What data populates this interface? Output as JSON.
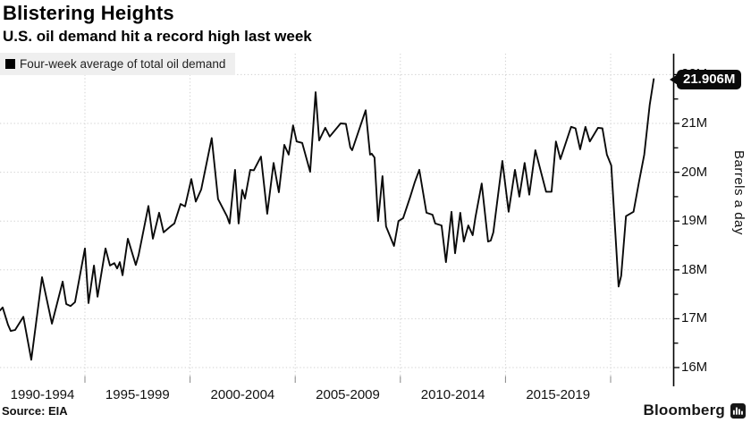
{
  "header": {
    "title": "Blistering Heights",
    "subtitle": "U.S. oil demand hit a record high last week"
  },
  "legend": {
    "label": "Four-week average of total oil demand"
  },
  "footer": {
    "source": "Source: EIA",
    "brand": "Bloomberg"
  },
  "colors": {
    "line": "#0a0a0a",
    "grid": "#d0d0d0",
    "axis": "#000000",
    "tick": "#111111",
    "bottom_tick": "#888888",
    "badge_bg": "#000000",
    "badge_text": "#ffffff",
    "legend_bg": "#efefef"
  },
  "chart_data": {
    "type": "line",
    "title": "Blistering Heights",
    "subtitle": "U.S. oil demand hit a record high last week",
    "series_name": "Four-week average of total oil demand",
    "ylabel": "Barrels a day",
    "unit": "million barrels a day",
    "grid": "dotted",
    "legend_position": "top-left",
    "ylim": [
      15.7,
      22.45
    ],
    "y_major_ticks": [
      16,
      17,
      18,
      19,
      20,
      21,
      22
    ],
    "y_tick_labels": [
      "16M",
      "17M",
      "18M",
      "19M",
      "20M",
      "21M",
      "22M"
    ],
    "y_minor_tick_step": 0.5,
    "xlim": [
      1990.95,
      2022.1
    ],
    "x_boundary_years": [
      1990,
      1995,
      2000,
      2005,
      2010,
      2015,
      2020
    ],
    "x_bin_labels": [
      "1990-1994",
      "1995-1999",
      "2000-2004",
      "2005-2009",
      "2010-2014",
      "2015-2019"
    ],
    "last_value_label": "21.906M",
    "last_value": 21.906,
    "points": [
      [
        1990.96,
        17.17
      ],
      [
        1991.09,
        17.23
      ],
      [
        1991.34,
        16.88
      ],
      [
        1991.47,
        16.75
      ],
      [
        1991.68,
        16.77
      ],
      [
        1992.07,
        17.04
      ],
      [
        1992.45,
        16.16
      ],
      [
        1992.96,
        17.85
      ],
      [
        1993.43,
        16.9
      ],
      [
        1993.94,
        17.76
      ],
      [
        1994.11,
        17.3
      ],
      [
        1994.32,
        17.26
      ],
      [
        1994.53,
        17.34
      ],
      [
        1995.0,
        18.44
      ],
      [
        1995.17,
        17.32
      ],
      [
        1995.43,
        18.09
      ],
      [
        1995.6,
        17.45
      ],
      [
        1995.98,
        18.44
      ],
      [
        1996.19,
        18.09
      ],
      [
        1996.4,
        18.14
      ],
      [
        1996.53,
        18.03
      ],
      [
        1996.66,
        18.16
      ],
      [
        1996.79,
        17.89
      ],
      [
        1997.04,
        18.64
      ],
      [
        1997.42,
        18.1
      ],
      [
        1997.55,
        18.3
      ],
      [
        1998.02,
        19.31
      ],
      [
        1998.23,
        18.64
      ],
      [
        1998.53,
        19.17
      ],
      [
        1998.74,
        18.77
      ],
      [
        1999.04,
        18.88
      ],
      [
        1999.25,
        18.95
      ],
      [
        1999.55,
        19.35
      ],
      [
        1999.76,
        19.3
      ],
      [
        2000.06,
        19.86
      ],
      [
        2000.27,
        19.4
      ],
      [
        2000.53,
        19.65
      ],
      [
        2001.03,
        20.7
      ],
      [
        2001.33,
        19.45
      ],
      [
        2001.75,
        19.1
      ],
      [
        2001.88,
        18.95
      ],
      [
        2002.14,
        20.05
      ],
      [
        2002.31,
        18.95
      ],
      [
        2002.48,
        19.64
      ],
      [
        2002.61,
        19.46
      ],
      [
        2002.86,
        20.05
      ],
      [
        2003.03,
        20.04
      ],
      [
        2003.37,
        20.32
      ],
      [
        2003.67,
        19.15
      ],
      [
        2003.97,
        20.19
      ],
      [
        2004.22,
        19.59
      ],
      [
        2004.48,
        20.56
      ],
      [
        2004.69,
        20.36
      ],
      [
        2004.9,
        20.96
      ],
      [
        2005.07,
        20.63
      ],
      [
        2005.33,
        20.6
      ],
      [
        2005.71,
        20.01
      ],
      [
        2005.97,
        21.64
      ],
      [
        2006.14,
        20.65
      ],
      [
        2006.43,
        20.91
      ],
      [
        2006.64,
        20.73
      ],
      [
        2007.16,
        21.0
      ],
      [
        2007.41,
        20.99
      ],
      [
        2007.62,
        20.51
      ],
      [
        2007.71,
        20.45
      ],
      [
        2008.35,
        21.27
      ],
      [
        2008.56,
        20.36
      ],
      [
        2008.64,
        20.38
      ],
      [
        2008.77,
        20.3
      ],
      [
        2008.94,
        19.0
      ],
      [
        2009.15,
        19.92
      ],
      [
        2009.32,
        18.89
      ],
      [
        2009.49,
        18.71
      ],
      [
        2009.7,
        18.49
      ],
      [
        2009.91,
        19.0
      ],
      [
        2010.13,
        19.06
      ],
      [
        2010.47,
        19.5
      ],
      [
        2010.68,
        19.79
      ],
      [
        2010.9,
        20.05
      ],
      [
        2011.24,
        19.17
      ],
      [
        2011.53,
        19.13
      ],
      [
        2011.66,
        18.95
      ],
      [
        2011.96,
        18.91
      ],
      [
        2012.17,
        18.16
      ],
      [
        2012.43,
        19.19
      ],
      [
        2012.6,
        18.34
      ],
      [
        2012.85,
        19.17
      ],
      [
        2013.02,
        18.58
      ],
      [
        2013.23,
        18.91
      ],
      [
        2013.44,
        18.71
      ],
      [
        2013.57,
        19.08
      ],
      [
        2013.87,
        19.77
      ],
      [
        2014.17,
        18.58
      ],
      [
        2014.3,
        18.6
      ],
      [
        2014.42,
        18.77
      ],
      [
        2014.85,
        20.23
      ],
      [
        2015.15,
        19.19
      ],
      [
        2015.45,
        20.05
      ],
      [
        2015.66,
        19.5
      ],
      [
        2015.91,
        20.19
      ],
      [
        2016.13,
        19.54
      ],
      [
        2016.42,
        20.45
      ],
      [
        2016.93,
        19.6
      ],
      [
        2017.19,
        19.6
      ],
      [
        2017.4,
        20.63
      ],
      [
        2017.61,
        20.27
      ],
      [
        2018.12,
        20.93
      ],
      [
        2018.33,
        20.9
      ],
      [
        2018.55,
        20.47
      ],
      [
        2018.8,
        20.93
      ],
      [
        2019.01,
        20.63
      ],
      [
        2019.4,
        20.91
      ],
      [
        2019.61,
        20.9
      ],
      [
        2019.82,
        20.36
      ],
      [
        2020.03,
        20.14
      ],
      [
        2020.38,
        17.66
      ],
      [
        2020.5,
        17.88
      ],
      [
        2020.73,
        19.1
      ],
      [
        2021.09,
        19.19
      ],
      [
        2021.35,
        19.81
      ],
      [
        2021.6,
        20.36
      ],
      [
        2021.86,
        21.38
      ],
      [
        2022.05,
        21.906
      ]
    ]
  }
}
